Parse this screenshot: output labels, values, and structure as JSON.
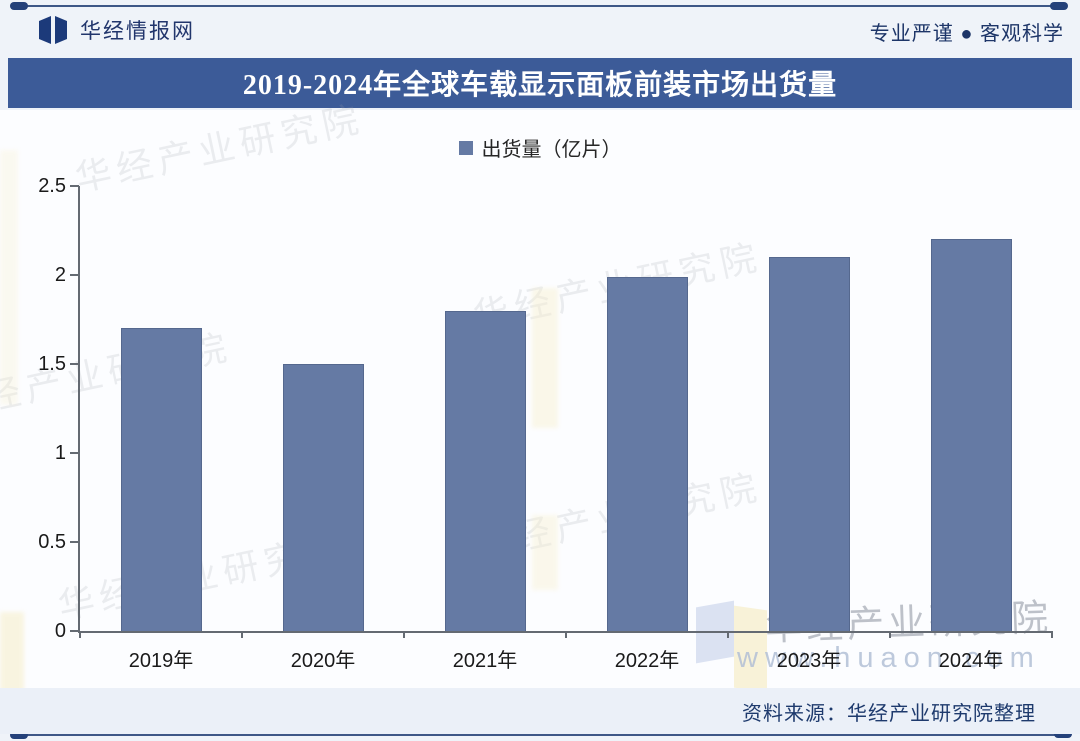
{
  "header": {
    "brand": "华经情报网",
    "tagline": "专业严谨 ● 客观科学"
  },
  "title": "2019-2024年全球车载显示面板前装市场出货量",
  "legend": {
    "label": "出货量（亿片）"
  },
  "source": "资料来源：华经产业研究院整理",
  "watermark": {
    "text": "华经产业研究院",
    "url": "www.huaon.com"
  },
  "colors": {
    "bar": "#657aa4",
    "title_bar": "#3c5b98",
    "navy_text": "#1e3467",
    "axis": "#646a72"
  },
  "chart_data": {
    "type": "bar",
    "title": "2019-2024年全球车载显示面板前装市场出货量",
    "categories": [
      "2019年",
      "2020年",
      "2021年",
      "2022年",
      "2023年",
      "2024年"
    ],
    "values": [
      1.7,
      1.5,
      1.8,
      1.99,
      2.1,
      2.2
    ],
    "series_name": "出货量（亿片）",
    "xlabel": "",
    "ylabel": "",
    "ylim": [
      0,
      2.5
    ],
    "yticks": [
      0,
      0.5,
      1,
      1.5,
      2,
      2.5
    ],
    "grid": false,
    "legend_position": "top-center"
  }
}
